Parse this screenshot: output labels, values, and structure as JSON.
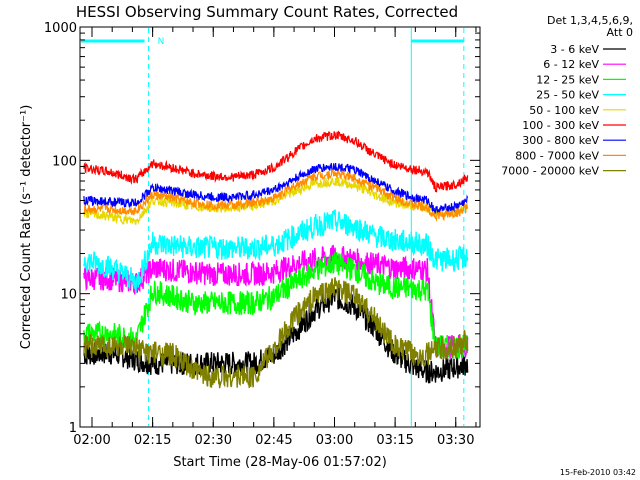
{
  "chart_data": {
    "type": "line",
    "title": "HESSI Observing Summary Count Rates, Corrected",
    "xlabel": "Start Time (28-May-06 01:57:02)",
    "ylabel": "Corrected Count Rate (s⁻¹ detector⁻¹)",
    "y_scale": "log",
    "ylim": [
      1,
      1000
    ],
    "xlim": [
      "01:57:02",
      "03:36:00"
    ],
    "x_ticks": [
      "02:00",
      "02:15",
      "02:30",
      "02:45",
      "03:00",
      "03:15",
      "03:30"
    ],
    "y_ticks": [
      "1",
      "10",
      "100",
      "1000"
    ],
    "legend_header": [
      "Det 1,3,4,5,6,9,",
      "Att 0"
    ],
    "legend_position": "right",
    "footer": "15-Feb-2010 03:42",
    "attenuator_label": "N",
    "attenuator_segments": [
      [
        "01:57",
        "02:13"
      ],
      [
        "03:19",
        "03:32"
      ]
    ],
    "dashed_markers": [
      "02:14",
      "03:32"
    ],
    "solid_markers": [
      "03:19"
    ],
    "x": [
      "01:58",
      "02:04",
      "02:08",
      "02:11",
      "02:15",
      "02:20",
      "02:25",
      "02:30",
      "02:35",
      "02:40",
      "02:45",
      "02:50",
      "02:55",
      "03:00",
      "03:05",
      "03:10",
      "03:15",
      "03:20",
      "03:23",
      "03:25",
      "03:30",
      "03:33"
    ],
    "series": [
      {
        "name": "3 - 6 keV",
        "color": "#000000",
        "values": [
          3.5,
          3.6,
          3.4,
          3.2,
          3.0,
          3.0,
          3.0,
          3.0,
          3.0,
          3.0,
          3.5,
          5.0,
          7.5,
          9.5,
          8.0,
          5.5,
          3.5,
          2.8,
          2.6,
          2.6,
          2.8,
          3.0
        ]
      },
      {
        "name": "6 - 12 keV",
        "color": "#ff00ff",
        "values": [
          13,
          13,
          12.5,
          12,
          15.5,
          15,
          14.5,
          14,
          14,
          14,
          14.5,
          16.5,
          18,
          19,
          18,
          16.5,
          15.5,
          15.5,
          15,
          4,
          4,
          4
        ]
      },
      {
        "name": "12 - 25 keV",
        "color": "#00ff00",
        "values": [
          5,
          5,
          4.8,
          4.5,
          10.5,
          9.5,
          8.5,
          8.5,
          8.5,
          8.5,
          9.5,
          12,
          15,
          17,
          15,
          12,
          11,
          11,
          10.5,
          4,
          4,
          4
        ]
      },
      {
        "name": "25 - 50 keV",
        "color": "#00ffff",
        "values": [
          18,
          16,
          14,
          12,
          24,
          23,
          22,
          22,
          22,
          22,
          23,
          27,
          32,
          35,
          32,
          27,
          25,
          24,
          23,
          18,
          18,
          19
        ]
      },
      {
        "name": "50 - 100 keV",
        "color": "#e6d800",
        "values": [
          40,
          38,
          36,
          35,
          50,
          48,
          45,
          44,
          44,
          45,
          50,
          58,
          67,
          70,
          65,
          55,
          48,
          45,
          44,
          40,
          42,
          45
        ]
      },
      {
        "name": "100 - 300 keV",
        "color": "#ff0000",
        "values": [
          88,
          82,
          76,
          72,
          95,
          88,
          80,
          76,
          75,
          78,
          88,
          115,
          145,
          155,
          140,
          110,
          92,
          85,
          82,
          62,
          66,
          75
        ]
      },
      {
        "name": "300 - 800 keV",
        "color": "#0000ff",
        "values": [
          50,
          49,
          48,
          48,
          62,
          59,
          55,
          53,
          53,
          55,
          60,
          72,
          86,
          90,
          84,
          70,
          58,
          52,
          50,
          42,
          45,
          50
        ]
      },
      {
        "name": "800 - 7000 keV",
        "color": "#ff8c00",
        "values": [
          43,
          43,
          42,
          42,
          55,
          52,
          48,
          46,
          46,
          48,
          52,
          64,
          76,
          80,
          74,
          62,
          52,
          46,
          44,
          38,
          40,
          44
        ]
      },
      {
        "name": "7000 - 20000 keV",
        "color": "#808000",
        "values": [
          4.0,
          4.1,
          4.0,
          3.8,
          3.6,
          3.5,
          2.6,
          2.4,
          2.4,
          2.4,
          3.8,
          6.5,
          9.5,
          11,
          9.5,
          6.5,
          4.0,
          3.5,
          3.5,
          3.8,
          4.0,
          4.5
        ]
      }
    ]
  }
}
